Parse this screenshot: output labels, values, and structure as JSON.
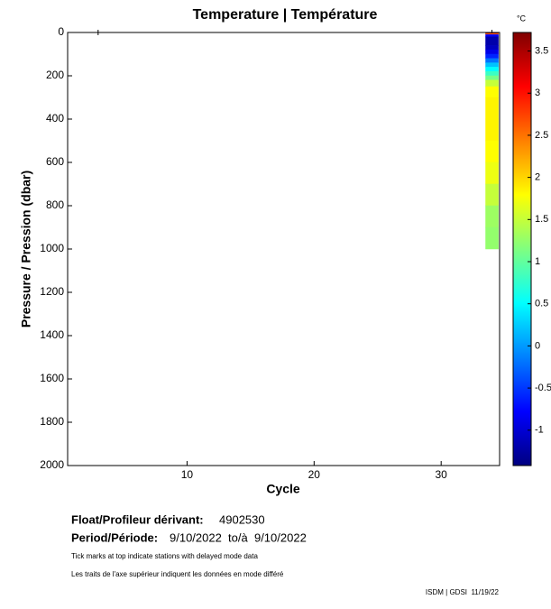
{
  "chart_data": {
    "type": "heatmap",
    "title": "Temperature | Température",
    "xlabel": "Cycle",
    "ylabel": "Pressure / Pression (dbar)",
    "colorbar_label": "°C",
    "colormap": "jet",
    "x": [
      34
    ],
    "pressure_bins": [
      0,
      5,
      10,
      20,
      60,
      80,
      100,
      120,
      140,
      160,
      180,
      200,
      220,
      250,
      300,
      400,
      500,
      600,
      700,
      800,
      900,
      1000
    ],
    "values": [
      [
        3.6,
        2.6,
        -0.8,
        -1.2,
        -1.1,
        -0.9,
        -0.6,
        -0.2,
        0.2,
        0.5,
        0.8,
        1.1,
        1.5,
        1.8,
        1.85,
        1.85,
        1.8,
        1.7,
        1.5,
        1.3,
        1.25
      ]
    ],
    "xlim": [
      0.6,
      34.6
    ],
    "xticks": [
      10,
      20,
      30
    ],
    "ylim": [
      2000,
      0
    ],
    "yticks": [
      0,
      200,
      400,
      600,
      800,
      1000,
      1200,
      1400,
      1600,
      1800,
      2000
    ],
    "clim": [
      -1.42,
      3.72
    ],
    "cticks": [
      3.5,
      3,
      2.5,
      2,
      1.5,
      1,
      0.5,
      0,
      -0.5,
      -1
    ],
    "delayed_mode_cycles": [
      3,
      34
    ]
  },
  "footer": {
    "float_label": "Float/Profileur dérivant:",
    "float_id": "4902530",
    "period_label": "Period/Période:",
    "period": "9/10/2022  to/à  9/10/2022",
    "note_en": "Tick marks at top indicate stations with delayed mode data",
    "note_fr": "Les traits de l'axe supérieur indiquent les données en mode différé",
    "credit": "ISDM | GDSI  11/19/22"
  }
}
